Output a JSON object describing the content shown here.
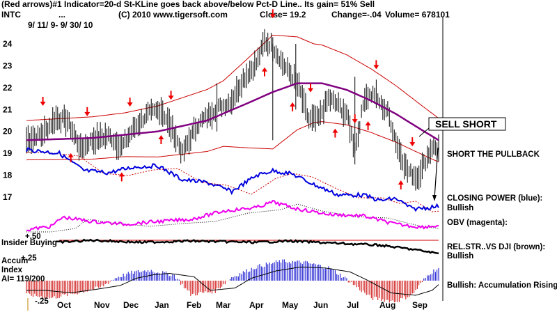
{
  "header": {
    "line1": "(Red arrows)#1 Indicator=20-d St-KLine goes back above/below Pct-D Line.. Its gain= 51% Sell",
    "symbol": "INTC",
    "dots": "...",
    "copyright": "(C) 2010 www.tigersoft.com",
    "close": "Close=  19.2",
    "change": "Change=-.04",
    "volume": "Volume= 678101",
    "date_range": "9/ 11/ 9-  9/ 30/ 10"
  },
  "annotations": {
    "sell_short": "SELL SHORT",
    "short_pullback": "SHORT THE PULLBACK",
    "closing_power": "CLOSING POWER (blue):",
    "closing_power_state": "Bullish",
    "obv": "OBV (magenta):",
    "relstr": "REL.STR..VS DJI (brown):",
    "relstr_state": "Bullish",
    "accum_state": "Bullish: Accumulation Rising"
  },
  "lower_labels": {
    "insider": "Insider Buying",
    "plus50": "+.50",
    "plus25": "+.25",
    "minus25": "-.25",
    "accum": "Accum",
    "index": "Index",
    "ai": "AI= 119/200"
  },
  "chart_data": {
    "type": "line",
    "ylim": [
      16.6,
      24.8
    ],
    "yticks": [
      "24",
      "23",
      "22",
      "21",
      "20",
      "19",
      "18",
      "17"
    ],
    "months": [
      "Oct",
      "Nov",
      "Dec",
      "Jan",
      "Feb",
      "Mar",
      "Apr",
      "May",
      "Jun",
      "Jul",
      "Aug",
      "Sep"
    ],
    "price_anchors": [
      [
        0,
        19.6
      ],
      [
        10,
        19.9
      ],
      [
        18,
        20.6
      ],
      [
        25,
        20.5
      ],
      [
        33,
        19.2
      ],
      [
        40,
        19.6
      ],
      [
        50,
        19.8
      ],
      [
        58,
        19.3
      ],
      [
        66,
        20.2
      ],
      [
        74,
        20.8
      ],
      [
        82,
        21.0
      ],
      [
        90,
        19.9
      ],
      [
        95,
        19.0
      ],
      [
        104,
        20.3
      ],
      [
        115,
        21.0
      ],
      [
        125,
        21.4
      ],
      [
        132,
        22.4
      ],
      [
        140,
        23.1
      ],
      [
        145,
        24.1
      ],
      [
        150,
        23.9
      ],
      [
        156,
        23.1
      ],
      [
        162,
        22.5
      ],
      [
        166,
        22.0
      ],
      [
        172,
        20.5
      ],
      [
        178,
        20.6
      ],
      [
        184,
        21.5
      ],
      [
        190,
        21.2
      ],
      [
        196,
        20.6
      ],
      [
        200,
        19.1
      ],
      [
        206,
        21.6
      ],
      [
        212,
        21.7
      ],
      [
        216,
        21.2
      ],
      [
        220,
        20.9
      ],
      [
        226,
        19.3
      ],
      [
        232,
        18.2
      ],
      [
        238,
        17.9
      ],
      [
        242,
        18.5
      ],
      [
        247,
        19.3
      ],
      [
        251,
        19.2
      ]
    ],
    "ma_anchors": [
      [
        0,
        19.6
      ],
      [
        40,
        19.7
      ],
      [
        80,
        20.0
      ],
      [
        110,
        20.5
      ],
      [
        135,
        21.3
      ],
      [
        150,
        21.8
      ],
      [
        165,
        22.2
      ],
      [
        180,
        22.2
      ],
      [
        195,
        21.9
      ],
      [
        210,
        21.4
      ],
      [
        225,
        20.8
      ],
      [
        240,
        20.1
      ],
      [
        251,
        19.6
      ]
    ],
    "bands_offset": [
      [
        0,
        0.9
      ],
      [
        60,
        1.0
      ],
      [
        120,
        1.5
      ],
      [
        150,
        2.6
      ],
      [
        175,
        1.8
      ],
      [
        215,
        1.4
      ],
      [
        251,
        1.0
      ]
    ],
    "sell_arrows_x": [
      10,
      37,
      63,
      88,
      150,
      173,
      200,
      213,
      235
    ],
    "buy_arrows_x": [
      27,
      58,
      82,
      145,
      162,
      188,
      208,
      228
    ]
  }
}
